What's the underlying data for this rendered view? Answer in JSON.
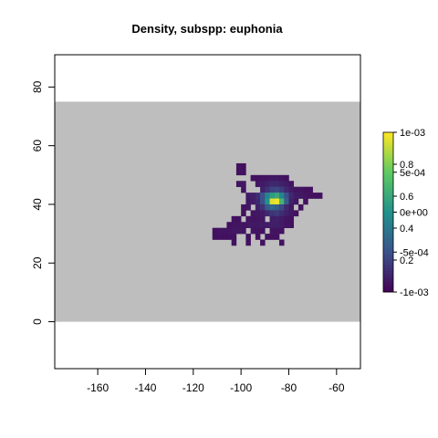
{
  "chart_data": {
    "type": "heatmap",
    "title": "Density, subspp: euphonia",
    "xlabel": "",
    "ylabel": "",
    "xlim": [
      -178,
      -50
    ],
    "ylim": [
      -16,
      91
    ],
    "x_ticks": [
      "-160",
      "-140",
      "-120",
      "-100",
      "-80",
      "-60"
    ],
    "y_ticks": [
      "0",
      "20",
      "40",
      "60",
      "80"
    ],
    "background_region": {
      "x": [
        -178,
        -50
      ],
      "y": [
        0,
        75
      ],
      "color": "#bebebe"
    },
    "cell_size_deg": 2,
    "colorbar": {
      "left_labels": [
        "1e-03",
        "5e-04",
        "0e+00",
        "-5e-04",
        "-1e-03"
      ],
      "right_labels": [
        "0.8",
        "0.6",
        "0.4",
        "0.2"
      ],
      "palette": [
        "#440154",
        "#3b528b",
        "#21918c",
        "#5ec962",
        "#fde725"
      ]
    },
    "cells": [
      {
        "x": -101,
        "y": 53,
        "v": 0.05
      },
      {
        "x": -99,
        "y": 53,
        "v": 0.04
      },
      {
        "x": -101,
        "y": 51,
        "v": 0.05
      },
      {
        "x": -99,
        "y": 51,
        "v": 0.05
      },
      {
        "x": -95,
        "y": 49,
        "v": 0.05
      },
      {
        "x": -93,
        "y": 49,
        "v": 0.05
      },
      {
        "x": -91,
        "y": 49,
        "v": 0.06
      },
      {
        "x": -89,
        "y": 49,
        "v": 0.06
      },
      {
        "x": -87,
        "y": 49,
        "v": 0.07
      },
      {
        "x": -85,
        "y": 49,
        "v": 0.07
      },
      {
        "x": -83,
        "y": 49,
        "v": 0.06
      },
      {
        "x": -81,
        "y": 49,
        "v": 0.05
      },
      {
        "x": -101,
        "y": 47,
        "v": 0.06
      },
      {
        "x": -99,
        "y": 47,
        "v": 0.07
      },
      {
        "x": -93,
        "y": 47,
        "v": 0.07
      },
      {
        "x": -91,
        "y": 47,
        "v": 0.08
      },
      {
        "x": -89,
        "y": 47,
        "v": 0.1
      },
      {
        "x": -87,
        "y": 47,
        "v": 0.12
      },
      {
        "x": -85,
        "y": 47,
        "v": 0.12
      },
      {
        "x": -83,
        "y": 47,
        "v": 0.1
      },
      {
        "x": -81,
        "y": 47,
        "v": 0.08
      },
      {
        "x": -79,
        "y": 47,
        "v": 0.06
      },
      {
        "x": -99,
        "y": 45,
        "v": 0.06
      },
      {
        "x": -91,
        "y": 45,
        "v": 0.1
      },
      {
        "x": -89,
        "y": 45,
        "v": 0.15
      },
      {
        "x": -87,
        "y": 45,
        "v": 0.2
      },
      {
        "x": -85,
        "y": 45,
        "v": 0.22
      },
      {
        "x": -83,
        "y": 45,
        "v": 0.18
      },
      {
        "x": -81,
        "y": 45,
        "v": 0.12
      },
      {
        "x": -79,
        "y": 45,
        "v": 0.08
      },
      {
        "x": -77,
        "y": 45,
        "v": 0.06
      },
      {
        "x": -75,
        "y": 45,
        "v": 0.06
      },
      {
        "x": -73,
        "y": 45,
        "v": 0.05
      },
      {
        "x": -71,
        "y": 45,
        "v": 0.05
      },
      {
        "x": -97,
        "y": 43,
        "v": 0.08
      },
      {
        "x": -95,
        "y": 43,
        "v": 0.1
      },
      {
        "x": -93,
        "y": 43,
        "v": 0.14
      },
      {
        "x": -91,
        "y": 43,
        "v": 0.25
      },
      {
        "x": -89,
        "y": 43,
        "v": 0.45
      },
      {
        "x": -87,
        "y": 43,
        "v": 0.55
      },
      {
        "x": -85,
        "y": 43,
        "v": 0.6
      },
      {
        "x": -83,
        "y": 43,
        "v": 0.45
      },
      {
        "x": -81,
        "y": 43,
        "v": 0.25
      },
      {
        "x": -79,
        "y": 43,
        "v": 0.12
      },
      {
        "x": -77,
        "y": 43,
        "v": 0.08
      },
      {
        "x": -75,
        "y": 43,
        "v": 0.07
      },
      {
        "x": -73,
        "y": 43,
        "v": 0.06
      },
      {
        "x": -71,
        "y": 43,
        "v": 0.05
      },
      {
        "x": -69,
        "y": 43,
        "v": 0.05
      },
      {
        "x": -67,
        "y": 43,
        "v": 0.05
      },
      {
        "x": -97,
        "y": 41,
        "v": 0.07
      },
      {
        "x": -95,
        "y": 41,
        "v": 0.09
      },
      {
        "x": -93,
        "y": 41,
        "v": 0.12
      },
      {
        "x": -91,
        "y": 41,
        "v": 0.25
      },
      {
        "x": -89,
        "y": 41,
        "v": 0.5
      },
      {
        "x": -87,
        "y": 41,
        "v": 0.95
      },
      {
        "x": -85,
        "y": 41,
        "v": 0.98
      },
      {
        "x": -83,
        "y": 41,
        "v": 0.65
      },
      {
        "x": -81,
        "y": 41,
        "v": 0.3
      },
      {
        "x": -79,
        "y": 41,
        "v": 0.1
      },
      {
        "x": -77,
        "y": 41,
        "v": 0.06
      },
      {
        "x": -73,
        "y": 41,
        "v": 0.05
      },
      {
        "x": -99,
        "y": 39,
        "v": 0.06
      },
      {
        "x": -97,
        "y": 39,
        "v": 0.07
      },
      {
        "x": -93,
        "y": 39,
        "v": 0.1
      },
      {
        "x": -91,
        "y": 39,
        "v": 0.15
      },
      {
        "x": -89,
        "y": 39,
        "v": 0.28
      },
      {
        "x": -87,
        "y": 39,
        "v": 0.35
      },
      {
        "x": -85,
        "y": 39,
        "v": 0.3
      },
      {
        "x": -83,
        "y": 39,
        "v": 0.22
      },
      {
        "x": -81,
        "y": 39,
        "v": 0.12
      },
      {
        "x": -79,
        "y": 39,
        "v": 0.07
      },
      {
        "x": -75,
        "y": 39,
        "v": 0.05
      },
      {
        "x": -99,
        "y": 37,
        "v": 0.05
      },
      {
        "x": -95,
        "y": 37,
        "v": 0.06
      },
      {
        "x": -93,
        "y": 37,
        "v": 0.07
      },
      {
        "x": -91,
        "y": 37,
        "v": 0.08
      },
      {
        "x": -89,
        "y": 37,
        "v": 0.12
      },
      {
        "x": -87,
        "y": 37,
        "v": 0.16
      },
      {
        "x": -85,
        "y": 37,
        "v": 0.18
      },
      {
        "x": -83,
        "y": 37,
        "v": 0.14
      },
      {
        "x": -81,
        "y": 37,
        "v": 0.1
      },
      {
        "x": -79,
        "y": 37,
        "v": 0.07
      },
      {
        "x": -77,
        "y": 37,
        "v": 0.05
      },
      {
        "x": -103,
        "y": 35,
        "v": 0.05
      },
      {
        "x": -101,
        "y": 35,
        "v": 0.05
      },
      {
        "x": -97,
        "y": 35,
        "v": 0.06
      },
      {
        "x": -95,
        "y": 35,
        "v": 0.06
      },
      {
        "x": -93,
        "y": 35,
        "v": 0.06
      },
      {
        "x": -91,
        "y": 35,
        "v": 0.07
      },
      {
        "x": -87,
        "y": 35,
        "v": 0.09
      },
      {
        "x": -85,
        "y": 35,
        "v": 0.1
      },
      {
        "x": -83,
        "y": 35,
        "v": 0.08
      },
      {
        "x": -81,
        "y": 35,
        "v": 0.06
      },
      {
        "x": -79,
        "y": 35,
        "v": 0.05
      },
      {
        "x": -105,
        "y": 33,
        "v": 0.05
      },
      {
        "x": -103,
        "y": 33,
        "v": 0.06
      },
      {
        "x": -101,
        "y": 33,
        "v": 0.06
      },
      {
        "x": -99,
        "y": 33,
        "v": 0.06
      },
      {
        "x": -97,
        "y": 33,
        "v": 0.07
      },
      {
        "x": -95,
        "y": 33,
        "v": 0.07
      },
      {
        "x": -93,
        "y": 33,
        "v": 0.07
      },
      {
        "x": -91,
        "y": 33,
        "v": 0.08
      },
      {
        "x": -89,
        "y": 33,
        "v": 0.08
      },
      {
        "x": -87,
        "y": 33,
        "v": 0.09
      },
      {
        "x": -85,
        "y": 33,
        "v": 0.09
      },
      {
        "x": -83,
        "y": 33,
        "v": 0.08
      },
      {
        "x": -81,
        "y": 33,
        "v": 0.06
      },
      {
        "x": -79,
        "y": 33,
        "v": 0.05
      },
      {
        "x": -111,
        "y": 31,
        "v": 0.05
      },
      {
        "x": -109,
        "y": 31,
        "v": 0.06
      },
      {
        "x": -107,
        "y": 31,
        "v": 0.06
      },
      {
        "x": -105,
        "y": 31,
        "v": 0.06
      },
      {
        "x": -103,
        "y": 31,
        "v": 0.07
      },
      {
        "x": -101,
        "y": 31,
        "v": 0.07
      },
      {
        "x": -99,
        "y": 31,
        "v": 0.06
      },
      {
        "x": -95,
        "y": 31,
        "v": 0.06
      },
      {
        "x": -93,
        "y": 31,
        "v": 0.06
      },
      {
        "x": -91,
        "y": 31,
        "v": 0.05
      },
      {
        "x": -87,
        "y": 31,
        "v": 0.06
      },
      {
        "x": -85,
        "y": 31,
        "v": 0.06
      },
      {
        "x": -83,
        "y": 31,
        "v": 0.05
      },
      {
        "x": -111,
        "y": 29,
        "v": 0.05
      },
      {
        "x": -109,
        "y": 29,
        "v": 0.05
      },
      {
        "x": -107,
        "y": 29,
        "v": 0.05
      },
      {
        "x": -105,
        "y": 29,
        "v": 0.05
      },
      {
        "x": -103,
        "y": 29,
        "v": 0.05
      },
      {
        "x": -97,
        "y": 29,
        "v": 0.05
      },
      {
        "x": -93,
        "y": 29,
        "v": 0.05
      },
      {
        "x": -89,
        "y": 29,
        "v": 0.05
      },
      {
        "x": -87,
        "y": 29,
        "v": 0.05
      },
      {
        "x": -85,
        "y": 29,
        "v": 0.05
      },
      {
        "x": -103,
        "y": 27,
        "v": 0.05
      },
      {
        "x": -97,
        "y": 27,
        "v": 0.05
      },
      {
        "x": -91,
        "y": 27,
        "v": 0.05
      },
      {
        "x": -83,
        "y": 27,
        "v": 0.05
      }
    ]
  }
}
